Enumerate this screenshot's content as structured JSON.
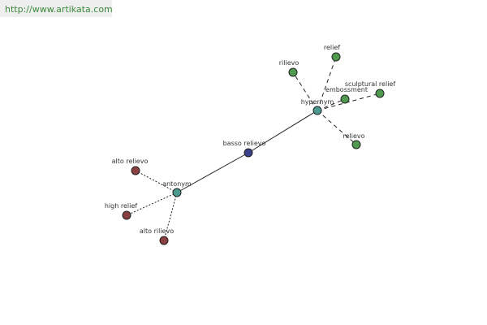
{
  "header": {
    "link": "http://www.artikata.com"
  },
  "nodes": [
    {
      "label": "basso relievo"
    },
    {
      "label": "hypernym"
    },
    {
      "label": "antonym"
    },
    {
      "label": "relief"
    },
    {
      "label": "rilievo"
    },
    {
      "label": "sculptural relief"
    },
    {
      "label": "embossment"
    },
    {
      "label": "relievo"
    },
    {
      "label": "alto relievo"
    },
    {
      "label": "high relief"
    },
    {
      "label": "alto rilievo"
    }
  ]
}
